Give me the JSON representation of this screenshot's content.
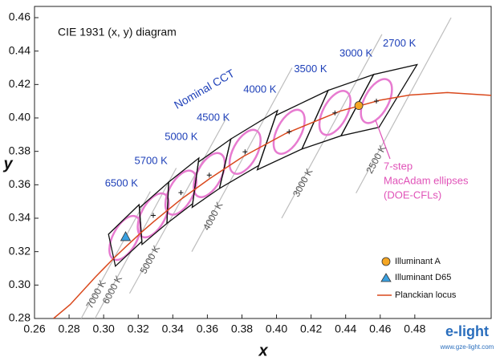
{
  "chart_data": {
    "type": "cie",
    "title": "CIE 1931 (x, y) diagram",
    "x_label": "x",
    "y_label": "y",
    "xlim": [
      0.26,
      0.52
    ],
    "ylim": [
      0.28,
      0.46
    ],
    "xticks": [
      0.26,
      0.28,
      {
        "value": 0.3,
        "label": "0.30"
      },
      0.32,
      0.34,
      0.36,
      0.38,
      {
        "value": 0.4,
        "label": "0.40"
      },
      0.42,
      0.44,
      0.46,
      0.48
    ],
    "yticks": [
      0.28,
      {
        "value": 0.3,
        "label": "0.30"
      },
      0.32,
      0.34,
      0.36,
      0.38,
      {
        "value": 0.4,
        "label": "0.40"
      },
      0.42,
      0.44,
      0.46
    ],
    "quadrangles": [
      {
        "label": "6500 K",
        "x": [
          0.3205,
          0.3028,
          0.3068,
          0.3221
        ],
        "y": [
          0.3481,
          0.3304,
          0.3113,
          0.3261
        ]
      },
      {
        "label": "5700 K",
        "x": [
          0.3376,
          0.3207,
          0.3222,
          0.3366
        ],
        "y": [
          0.3616,
          0.3462,
          0.3243,
          0.3369
        ]
      },
      {
        "label": "5000 K",
        "x": [
          0.3551,
          0.3376,
          0.3366,
          0.3515
        ],
        "y": [
          0.376,
          0.3616,
          0.3369,
          0.3487
        ]
      },
      {
        "label": "4500 K",
        "x": [
          0.3736,
          0.3548,
          0.3512,
          0.367
        ],
        "y": [
          0.3874,
          0.3736,
          0.3465,
          0.3578
        ]
      },
      {
        "label": "4000 K",
        "x": [
          0.4006,
          0.3736,
          0.367,
          0.3898
        ],
        "y": [
          0.4044,
          0.3874,
          0.3578,
          0.3716
        ]
      },
      {
        "label": "3500 K",
        "x": [
          0.4299,
          0.3996,
          0.3889,
          0.4147
        ],
        "y": [
          0.4165,
          0.4015,
          0.369,
          0.3814
        ]
      },
      {
        "label": "3000 K",
        "x": [
          0.4562,
          0.4299,
          0.4147,
          0.4373
        ],
        "y": [
          0.426,
          0.4165,
          0.3814,
          0.3893
        ]
      },
      {
        "label": "2700 K",
        "x": [
          0.4813,
          0.4562,
          0.4373,
          0.4593
        ],
        "y": [
          0.4319,
          0.426,
          0.3893,
          0.3944
        ]
      }
    ],
    "centers": {
      "x": [
        0.3123,
        0.3287,
        0.3447,
        0.3611,
        0.3818,
        0.4073,
        0.4338,
        0.4578
      ],
      "y": [
        0.3282,
        0.3417,
        0.3553,
        0.3658,
        0.3797,
        0.3917,
        0.403,
        0.4101
      ]
    },
    "isotherms": [
      {
        "label": "7000 K",
        "x": [
          0.287,
          0.327
        ],
        "y": [
          0.28,
          0.356
        ]
      },
      {
        "label": "6000 K",
        "x": [
          0.295,
          0.342
        ],
        "y": [
          0.28,
          0.37
        ]
      },
      {
        "label": "5000 K",
        "x": [
          0.315,
          0.371
        ],
        "y": [
          0.295,
          0.4
        ]
      },
      {
        "label": "4000 K",
        "x": [
          0.351,
          0.409
        ],
        "y": [
          0.32,
          0.43
        ]
      },
      {
        "label": "3000 K",
        "x": [
          0.403,
          0.461
        ],
        "y": [
          0.34,
          0.45
        ]
      },
      {
        "label": "2500 K",
        "x": [
          0.446,
          0.501
        ],
        "y": [
          0.355,
          0.46
        ]
      }
    ],
    "locus": {
      "name": "Planckian locus",
      "color": "#d9481c",
      "x": [
        0.271,
        0.2807,
        0.2952,
        0.3064,
        0.3135,
        0.3221,
        0.329,
        0.3451,
        0.3611,
        0.3805,
        0.4053,
        0.4369,
        0.4599,
        0.477,
        0.4988,
        0.5267
      ],
      "y": [
        0.28,
        0.2884,
        0.3048,
        0.3166,
        0.3236,
        0.3318,
        0.338,
        0.3516,
        0.3635,
        0.3768,
        0.3907,
        0.4041,
        0.4106,
        0.4137,
        0.4152,
        0.4133
      ]
    },
    "points": [
      {
        "name": "Illuminant A",
        "x": 0.4476,
        "y": 0.4074,
        "color": "#f5a623",
        "marker": "circle"
      },
      {
        "name": "Illuminant D65",
        "x": 0.3127,
        "y": 0.329,
        "color": "#3aa0e0",
        "marker": "triangle"
      }
    ],
    "annotations": {
      "nominal": "Nominal CCT",
      "ellipses": [
        "7-step",
        "MacAdam ellipses",
        "(DOE-CFLs)"
      ]
    },
    "watermark": {
      "brand": "e-light",
      "url": "www.gze-light.com"
    }
  }
}
